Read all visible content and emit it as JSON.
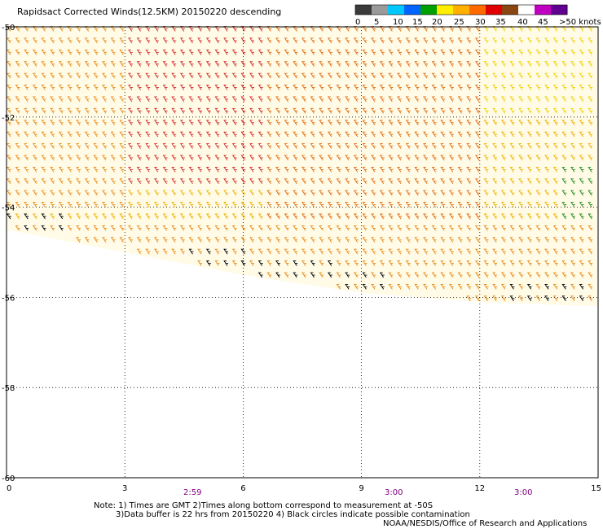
{
  "title": "Rapidsact Corrected Winds(12.5KM) 20150220 descending",
  "colorbar": {
    "labels": [
      "0",
      "5",
      "10",
      "15",
      "20",
      "25",
      "30",
      "35",
      "40",
      "45",
      ">50 knots"
    ],
    "colors": [
      "#3a3a3a",
      "#9a9a9a",
      "#00c8ff",
      "#0064ff",
      "#00a000",
      "#ffee00",
      "#ffb000",
      "#ff6a00",
      "#e00000",
      "#8b4513",
      "#ffffff",
      "#c000c0",
      "#600090"
    ]
  },
  "times": [
    "2:59",
    "3:00",
    "3:00"
  ],
  "notes": {
    "line1": "Note: 1) Times are GMT 2)Times along bottom correspond to measurement at -50S",
    "line2": "3)Data buffer is 22 hrs from 20150220 4) Black circles indicate possible contamination",
    "line3": "NOAA/NESDIS/Office of Research and Applications"
  },
  "chart_data": {
    "type": "scatter",
    "title": "Rapidsact Corrected Winds(12.5KM) 20150220 descending",
    "x_ticks": [
      "0",
      "3",
      "6",
      "9",
      "12",
      "15"
    ],
    "y_ticks": [
      "-50",
      "-52",
      "-54",
      "-56",
      "-58",
      "-60"
    ],
    "xlim": [
      0,
      15
    ],
    "ylim": [
      -60,
      -50
    ],
    "grid": true,
    "units": "knots",
    "swath_southern_edge": [
      {
        "x": 0,
        "y": -54.5
      },
      {
        "x": 3,
        "y": -55.0
      },
      {
        "x": 6,
        "y": -55.5
      },
      {
        "x": 9,
        "y": -55.9
      },
      {
        "x": 12,
        "y": -56.1
      },
      {
        "x": 15,
        "y": -56.2
      }
    ],
    "wind_speed_regions": [
      {
        "x": [
          3,
          6.5
        ],
        "y": [
          -53.5,
          -50
        ],
        "speed_range": "30-40"
      },
      {
        "x": [
          0,
          3
        ],
        "y": [
          -54,
          -50
        ],
        "speed_range": "20-30"
      },
      {
        "x": [
          6.5,
          12
        ],
        "y": [
          -55,
          -50
        ],
        "speed_range": "25-35"
      },
      {
        "x": [
          12,
          15
        ],
        "y": [
          -52,
          -50
        ],
        "speed_range": "15-25"
      },
      {
        "x": [
          14,
          15
        ],
        "y": [
          -54.5,
          -53
        ],
        "speed_range": "15-20"
      },
      {
        "x": [
          0,
          15
        ],
        "y": [
          -56.2,
          -54.5
        ],
        "speed_range": "20-30"
      }
    ]
  }
}
